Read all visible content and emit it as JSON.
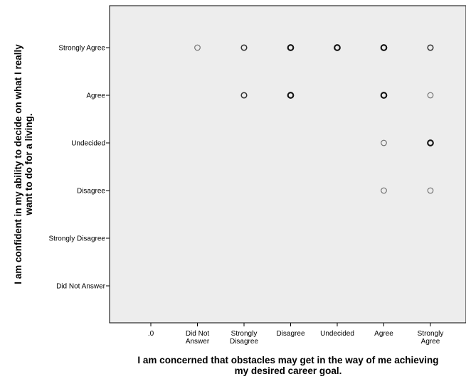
{
  "chart_data": {
    "type": "scatter",
    "title": "",
    "xlabel_lines": [
      "I am concerned that obstacles may get in the way of me achieving",
      "my desired career goal."
    ],
    "ylabel_lines": [
      "I am confident in my ability to decide on what I really",
      "want to do for a living."
    ],
    "x_categories": [
      {
        "key": "0",
        "lines": [
          ".0"
        ]
      },
      {
        "key": "DNA",
        "lines": [
          "Did Not",
          "Answer"
        ]
      },
      {
        "key": "SD",
        "lines": [
          "Strongly",
          "Disagree"
        ]
      },
      {
        "key": "D",
        "lines": [
          "Disagree"
        ]
      },
      {
        "key": "U",
        "lines": [
          "Undecided"
        ]
      },
      {
        "key": "A",
        "lines": [
          "Agree"
        ]
      },
      {
        "key": "SA",
        "lines": [
          "Strongly",
          "Agree"
        ]
      }
    ],
    "y_categories": [
      "Strongly Agree",
      "Agree",
      "Undecided",
      "Disagree",
      "Strongly Disagree",
      "Did Not Answer"
    ],
    "points": [
      {
        "x": "DNA",
        "y": "Strongly Agree",
        "weight": "light"
      },
      {
        "x": "SD",
        "y": "Strongly Agree",
        "weight": "medium"
      },
      {
        "x": "D",
        "y": "Strongly Agree",
        "weight": "heavy"
      },
      {
        "x": "U",
        "y": "Strongly Agree",
        "weight": "heavy"
      },
      {
        "x": "A",
        "y": "Strongly Agree",
        "weight": "heavy"
      },
      {
        "x": "SA",
        "y": "Strongly Agree",
        "weight": "medium"
      },
      {
        "x": "SD",
        "y": "Agree",
        "weight": "medium"
      },
      {
        "x": "D",
        "y": "Agree",
        "weight": "heavy"
      },
      {
        "x": "A",
        "y": "Agree",
        "weight": "heavy"
      },
      {
        "x": "SA",
        "y": "Agree",
        "weight": "light"
      },
      {
        "x": "A",
        "y": "Undecided",
        "weight": "light"
      },
      {
        "x": "SA",
        "y": "Undecided",
        "weight": "heavy"
      },
      {
        "x": "A",
        "y": "Disagree",
        "weight": "light"
      },
      {
        "x": "SA",
        "y": "Disagree",
        "weight": "light"
      }
    ],
    "grid": false,
    "colors": {
      "plot_background": "#ededed",
      "marker": "#000000"
    }
  }
}
